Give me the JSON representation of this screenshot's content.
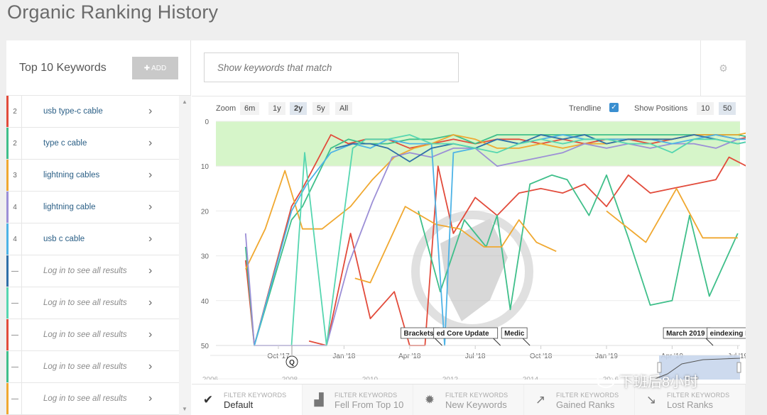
{
  "page": {
    "title": "Organic Ranking History"
  },
  "sidebar": {
    "title": "Top 10 Keywords",
    "add_label": "ADD",
    "keywords": [
      {
        "pos": "2",
        "name": "usb type-c cable",
        "color": "#e24b3b",
        "locked": false
      },
      {
        "pos": "2",
        "name": "type c cable",
        "color": "#3fbf8a",
        "locked": false
      },
      {
        "pos": "3",
        "name": "lightning cables",
        "color": "#f0a830",
        "locked": false
      },
      {
        "pos": "4",
        "name": "lightning cable",
        "color": "#9c8fd6",
        "locked": false
      },
      {
        "pos": "4",
        "name": "usb c cable",
        "color": "#4db3e6",
        "locked": false
      },
      {
        "pos": "—",
        "name": "Log in to see all results",
        "color": "#2f6fa8",
        "locked": true
      },
      {
        "pos": "—",
        "name": "Log in to see all results",
        "color": "#56d6b0",
        "locked": true
      },
      {
        "pos": "—",
        "name": "Log in to see all results",
        "color": "#e24b3b",
        "locked": true
      },
      {
        "pos": "—",
        "name": "Log in to see all results",
        "color": "#3fbf8a",
        "locked": true
      },
      {
        "pos": "—",
        "name": "Log in to see all results",
        "color": "#f0a830",
        "locked": true
      }
    ]
  },
  "search": {
    "placeholder": "Show keywords that match"
  },
  "controls": {
    "zoom_label": "Zoom",
    "zoom_options": [
      "6m",
      "1y",
      "2y",
      "5y",
      "All"
    ],
    "zoom_active": "2y",
    "trendline_label": "Trendline",
    "trendline_checked": true,
    "positions_label": "Show Positions",
    "positions_options": [
      "10",
      "50"
    ],
    "positions_active": "50"
  },
  "chart_data": {
    "type": "line",
    "y_reversed": true,
    "ylim": [
      0,
      50
    ],
    "yticks": [
      0,
      10,
      20,
      30,
      40,
      50
    ],
    "top10_band_color": "#d6f5c9",
    "xticks": [
      "Oct '17",
      "Jan '18",
      "Apr '18",
      "Jul '18",
      "Oct '18",
      "Jan '19",
      "Apr '19",
      "Jul '19"
    ],
    "annotations": [
      {
        "label": "Brackets",
        "month": 5.6
      },
      {
        "label": "ed Core Update",
        "month": 7.1
      },
      {
        "label": "Medic",
        "month": 10.2
      },
      {
        "label": "March 2019",
        "month": 17.6
      },
      {
        "label": "eindexing Bug",
        "month": 19.6
      }
    ],
    "marker": "Q",
    "series": [
      {
        "color": "#e24b3b",
        "points": [
          [
            -1.5,
            31
          ],
          [
            -1.1,
            50
          ],
          [
            0.6,
            19
          ],
          [
            1.1,
            15
          ],
          [
            2.4,
            3
          ],
          [
            3.2,
            5
          ],
          [
            4.0,
            4
          ],
          [
            5.0,
            4
          ],
          [
            6.0,
            6
          ],
          [
            7.0,
            5
          ],
          [
            8.0,
            4
          ],
          [
            9.0,
            5
          ],
          [
            10.0,
            4
          ],
          [
            11.0,
            4
          ],
          [
            12.0,
            5
          ],
          [
            13.0,
            4
          ],
          [
            14.0,
            5
          ],
          [
            15.0,
            4
          ],
          [
            16.0,
            4
          ],
          [
            17.0,
            5
          ],
          [
            18.0,
            4
          ],
          [
            19.0,
            3
          ],
          [
            20.0,
            3
          ],
          [
            21.0,
            4
          ],
          [
            22.0,
            3
          ]
        ]
      },
      {
        "color": "#e24b3b",
        "points": [
          [
            1.4,
            49
          ],
          [
            2.2,
            50
          ],
          [
            3.3,
            25
          ],
          [
            4.2,
            44
          ],
          [
            5.3,
            38
          ],
          [
            6.0,
            50
          ],
          [
            6.7,
            50
          ],
          [
            7.3,
            10
          ],
          [
            8.0,
            25
          ],
          [
            9.0,
            17
          ],
          [
            10.0,
            21
          ],
          [
            11.0,
            16
          ],
          [
            12.0,
            15
          ],
          [
            13.0,
            16
          ],
          [
            14.0,
            14
          ],
          [
            15.0,
            19
          ],
          [
            16.0,
            12
          ],
          [
            17.0,
            16
          ],
          [
            18.0,
            15
          ],
          [
            19.0,
            14
          ],
          [
            20.0,
            13
          ],
          [
            20.6,
            8
          ],
          [
            21.4,
            10
          ],
          [
            22.0,
            15
          ]
        ]
      },
      {
        "color": "#3fbf8a",
        "points": [
          [
            -1.5,
            28
          ],
          [
            -1.1,
            50
          ],
          [
            0.6,
            22
          ],
          [
            1.1,
            19
          ],
          [
            2.4,
            6
          ],
          [
            3.2,
            4
          ],
          [
            4.0,
            5
          ],
          [
            5.0,
            5
          ],
          [
            6.0,
            4
          ],
          [
            7.0,
            4
          ],
          [
            8.0,
            3
          ],
          [
            9.0,
            5
          ],
          [
            10.0,
            3
          ],
          [
            11.0,
            3
          ],
          [
            12.0,
            3
          ],
          [
            13.0,
            3
          ],
          [
            14.0,
            3
          ],
          [
            15.0,
            3
          ],
          [
            16.0,
            3
          ],
          [
            17.0,
            3
          ],
          [
            18.0,
            3
          ],
          [
            19.0,
            3
          ],
          [
            20.0,
            3
          ],
          [
            21.0,
            3
          ],
          [
            22.0,
            4
          ]
        ]
      },
      {
        "color": "#3fbf8a",
        "points": [
          [
            6.4,
            20
          ],
          [
            7.4,
            38
          ],
          [
            8.5,
            22
          ],
          [
            9.5,
            28
          ],
          [
            10.0,
            21
          ],
          [
            10.6,
            42
          ],
          [
            11.5,
            14
          ],
          [
            12.5,
            12
          ],
          [
            13.2,
            13
          ],
          [
            14.2,
            21
          ],
          [
            15.0,
            12
          ],
          [
            16.0,
            26
          ],
          [
            17.0,
            41
          ],
          [
            18.0,
            40
          ],
          [
            18.8,
            21
          ],
          [
            19.7,
            39
          ],
          [
            21.0,
            25
          ]
        ]
      },
      {
        "color": "#f0a830",
        "points": [
          [
            -1.5,
            33
          ],
          [
            -0.6,
            24
          ],
          [
            0.3,
            11
          ],
          [
            1.1,
            24
          ],
          [
            2.0,
            24
          ],
          [
            3.3,
            19
          ],
          [
            4.3,
            13
          ],
          [
            5.3,
            8
          ],
          [
            6.2,
            6
          ],
          [
            7.0,
            5
          ],
          [
            8.0,
            3
          ],
          [
            9.0,
            4
          ],
          [
            10.0,
            6
          ],
          [
            11.0,
            6
          ],
          [
            12.0,
            5
          ],
          [
            13.0,
            6
          ],
          [
            14.0,
            5
          ],
          [
            15.0,
            5
          ],
          [
            16.0,
            4
          ],
          [
            17.0,
            4
          ],
          [
            18.0,
            4
          ],
          [
            19.0,
            3
          ],
          [
            20.0,
            3
          ],
          [
            21.0,
            3
          ],
          [
            22.0,
            2
          ]
        ]
      },
      {
        "color": "#f0a830",
        "points": [
          [
            3.5,
            35
          ],
          [
            4.2,
            36
          ],
          [
            5.8,
            19
          ],
          [
            7.2,
            23
          ],
          [
            8.3,
            24
          ],
          [
            9.4,
            28
          ],
          [
            10.2,
            28
          ],
          [
            11.0,
            22
          ],
          [
            11.8,
            27
          ],
          [
            12.7,
            29
          ]
        ]
      },
      {
        "color": "#f0a830",
        "points": [
          [
            15.0,
            20
          ],
          [
            16.8,
            27
          ],
          [
            18.2,
            15
          ],
          [
            19.4,
            26
          ],
          [
            20.4,
            26
          ],
          [
            21.0,
            26
          ]
        ]
      },
      {
        "color": "#9c8fd6",
        "points": [
          [
            -1.5,
            25
          ],
          [
            -1.1,
            50
          ],
          [
            2.2,
            50
          ],
          [
            3.2,
            32
          ],
          [
            4.3,
            18
          ],
          [
            5.2,
            8
          ],
          [
            6.0,
            7
          ],
          [
            7.0,
            8
          ],
          [
            8.0,
            6
          ],
          [
            9.0,
            6
          ],
          [
            10.0,
            10
          ],
          [
            11.0,
            9
          ],
          [
            12.0,
            8
          ],
          [
            13.0,
            7
          ],
          [
            14.0,
            5
          ],
          [
            15.0,
            6
          ],
          [
            16.0,
            5
          ],
          [
            17.0,
            6
          ],
          [
            18.0,
            5
          ],
          [
            19.0,
            5
          ],
          [
            20.0,
            6
          ],
          [
            21.0,
            4
          ],
          [
            22.0,
            4
          ]
        ]
      },
      {
        "color": "#4db3e6",
        "points": [
          [
            -1.1,
            50
          ],
          [
            0.6,
            20
          ],
          [
            1.3,
            14
          ],
          [
            2.4,
            7
          ],
          [
            3.4,
            5
          ],
          [
            4.2,
            6
          ],
          [
            5.0,
            4
          ],
          [
            6.0,
            5
          ],
          [
            7.0,
            5
          ],
          [
            7.6,
            50
          ],
          [
            8.0,
            7
          ],
          [
            9.0,
            6
          ],
          [
            10.0,
            4
          ],
          [
            11.0,
            5
          ],
          [
            12.0,
            4
          ],
          [
            13.0,
            3
          ],
          [
            14.0,
            4
          ],
          [
            15.0,
            4
          ],
          [
            16.0,
            4
          ],
          [
            17.0,
            4
          ],
          [
            18.0,
            5
          ],
          [
            19.0,
            4
          ],
          [
            20.0,
            3
          ],
          [
            21.0,
            4
          ],
          [
            22.0,
            4
          ]
        ]
      },
      {
        "color": "#2f6fa8",
        "points": [
          [
            2.6,
            6
          ],
          [
            3.4,
            5
          ],
          [
            4.2,
            5
          ],
          [
            5.0,
            6
          ],
          [
            6.0,
            9
          ],
          [
            7.0,
            6
          ],
          [
            8.0,
            5
          ],
          [
            9.0,
            6
          ],
          [
            10.0,
            4
          ],
          [
            11.0,
            5
          ],
          [
            12.0,
            3
          ],
          [
            13.0,
            4
          ],
          [
            14.0,
            3
          ],
          [
            15.0,
            5
          ],
          [
            16.0,
            4
          ],
          [
            17.0,
            4
          ],
          [
            18.0,
            4
          ],
          [
            19.0,
            3
          ],
          [
            20.0,
            4
          ],
          [
            21.0,
            5
          ],
          [
            22.0,
            4
          ]
        ]
      },
      {
        "color": "#56d6b0",
        "points": [
          [
            0.6,
            50
          ],
          [
            1.2,
            7
          ],
          [
            2.2,
            50
          ],
          [
            3.4,
            6
          ],
          [
            4.0,
            4
          ],
          [
            5.0,
            4
          ],
          [
            6.0,
            3
          ],
          [
            7.0,
            5
          ],
          [
            8.0,
            5
          ],
          [
            9.0,
            6
          ],
          [
            10.0,
            7
          ],
          [
            11.0,
            5
          ],
          [
            12.0,
            4
          ],
          [
            13.0,
            5
          ],
          [
            14.0,
            4
          ],
          [
            15.0,
            4
          ],
          [
            16.0,
            5
          ],
          [
            17.0,
            5
          ],
          [
            18.0,
            7
          ],
          [
            19.0,
            4
          ],
          [
            20.0,
            4
          ],
          [
            21.0,
            5
          ],
          [
            22.0,
            4
          ]
        ]
      }
    ]
  },
  "navigator": {
    "years": [
      "2006",
      "2008",
      "2010",
      "2012",
      "2014",
      "2016",
      "2018"
    ]
  },
  "tabs": [
    {
      "cap": "FILTER KEYWORDS",
      "label": "Default",
      "icon": "check-circle-icon",
      "active": true
    },
    {
      "cap": "FILTER KEYWORDS",
      "label": "Fell From Top 10",
      "icon": "area-chart-icon",
      "active": false
    },
    {
      "cap": "FILTER KEYWORDS",
      "label": "New Keywords",
      "icon": "badge-new-icon",
      "active": false
    },
    {
      "cap": "FILTER KEYWORDS",
      "label": "Gained Ranks",
      "icon": "trend-up-icon",
      "active": false
    },
    {
      "cap": "FILTER KEYWORDS",
      "label": "Lost Ranks",
      "icon": "trend-down-icon",
      "active": false
    }
  ],
  "watermark": {
    "text": "下班后8小时"
  }
}
